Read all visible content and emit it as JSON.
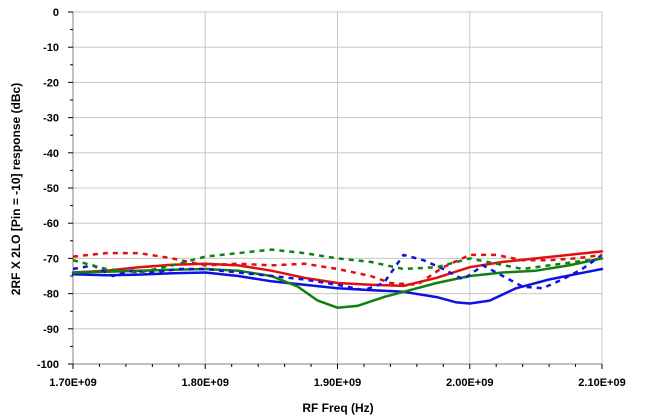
{
  "chart_data": {
    "type": "line",
    "title": "",
    "xlabel": "RF Freq (Hz)",
    "ylabel": "2RF X 2LO [Pin = -10] response (dBc)",
    "xlim": [
      1700000000,
      2100000000
    ],
    "ylim": [
      -100,
      0
    ],
    "x_ticks": [
      1700000000,
      1800000000,
      1900000000,
      2000000000,
      2100000000
    ],
    "x_tick_labels": [
      "1.70E+09",
      "1.80E+09",
      "1.90E+09",
      "2.00E+09",
      "2.10E+09"
    ],
    "y_ticks": [
      0,
      -10,
      -20,
      -30,
      -40,
      -50,
      -60,
      -70,
      -80,
      -90,
      -100
    ],
    "y_tick_labels": [
      "0",
      "-10",
      "-20",
      "-30",
      "-40",
      "-50",
      "-60",
      "-70",
      "-80",
      "-90",
      "-100"
    ],
    "grid": true,
    "legend": "none",
    "series": [
      {
        "color": "#1010e0",
        "dashed": false,
        "x": [
          1700000000,
          1725000000,
          1750000000,
          1775000000,
          1800000000,
          1825000000,
          1850000000,
          1875000000,
          1900000000,
          1925000000,
          1950000000,
          1975000000,
          1990000000,
          2000000000,
          2015000000,
          2035000000,
          2060000000,
          2080000000,
          2100000000
        ],
        "y": [
          -74.5,
          -74.8,
          -74.6,
          -74.2,
          -74,
          -75,
          -76.5,
          -77.5,
          -78.5,
          -79,
          -79.5,
          -81,
          -82.5,
          -82.8,
          -82,
          -78.5,
          -76,
          -74.5,
          -73
        ]
      },
      {
        "color": "#e01010",
        "dashed": false,
        "x": [
          1700000000,
          1725000000,
          1750000000,
          1775000000,
          1800000000,
          1825000000,
          1850000000,
          1875000000,
          1900000000,
          1925000000,
          1950000000,
          1975000000,
          2000000000,
          2025000000,
          2050000000,
          2075000000,
          2100000000
        ],
        "y": [
          -74,
          -73.5,
          -72.5,
          -71.8,
          -71.5,
          -72,
          -73.5,
          -75.5,
          -77,
          -77.5,
          -77.8,
          -75.5,
          -72.5,
          -71,
          -70,
          -69,
          -68
        ]
      },
      {
        "color": "#108010",
        "dashed": false,
        "x": [
          1700000000,
          1725000000,
          1750000000,
          1775000000,
          1800000000,
          1825000000,
          1850000000,
          1870000000,
          1885000000,
          1900000000,
          1915000000,
          1935000000,
          1955000000,
          1975000000,
          2000000000,
          2025000000,
          2050000000,
          2075000000,
          2100000000
        ],
        "y": [
          -74,
          -73.8,
          -73.5,
          -73.2,
          -73,
          -73.5,
          -75,
          -78,
          -82,
          -84,
          -83.5,
          -81,
          -79,
          -77,
          -75,
          -74,
          -73.5,
          -72,
          -70
        ]
      },
      {
        "color": "#1010e0",
        "dashed": true,
        "x": [
          1700000000,
          1715000000,
          1730000000,
          1745000000,
          1760000000,
          1780000000,
          1800000000,
          1825000000,
          1850000000,
          1875000000,
          1900000000,
          1920000000,
          1935000000,
          1950000000,
          1965000000,
          1980000000,
          1995000000,
          2010000000,
          2025000000,
          2040000000,
          2055000000,
          2070000000,
          2085000000,
          2100000000
        ],
        "y": [
          -73,
          -72,
          -75,
          -73.5,
          -74,
          -73,
          -73,
          -74,
          -75,
          -76,
          -77.5,
          -79,
          -77,
          -69,
          -70.5,
          -73,
          -76,
          -72,
          -75,
          -78,
          -78.5,
          -76,
          -73,
          -69
        ]
      },
      {
        "color": "#e01010",
        "dashed": true,
        "x": [
          1700000000,
          1725000000,
          1750000000,
          1775000000,
          1800000000,
          1825000000,
          1850000000,
          1875000000,
          1900000000,
          1925000000,
          1940000000,
          1960000000,
          1980000000,
          2000000000,
          2020000000,
          2040000000,
          2060000000,
          2080000000,
          2100000000
        ],
        "y": [
          -69.5,
          -68.5,
          -68.5,
          -70,
          -72,
          -71.5,
          -72,
          -71.5,
          -73,
          -75,
          -77,
          -77.5,
          -72.5,
          -69,
          -69,
          -70.5,
          -70.5,
          -70,
          -69
        ]
      },
      {
        "color": "#108010",
        "dashed": true,
        "x": [
          1700000000,
          1725000000,
          1750000000,
          1775000000,
          1800000000,
          1825000000,
          1850000000,
          1875000000,
          1900000000,
          1925000000,
          1950000000,
          1975000000,
          2000000000,
          2020000000,
          2040000000,
          2060000000,
          2080000000,
          2100000000
        ],
        "y": [
          -70.5,
          -73,
          -74,
          -72,
          -69.5,
          -68.5,
          -67.5,
          -68.5,
          -70,
          -71,
          -73,
          -72.5,
          -70,
          -71.5,
          -73,
          -72,
          -71,
          -70
        ]
      }
    ]
  }
}
